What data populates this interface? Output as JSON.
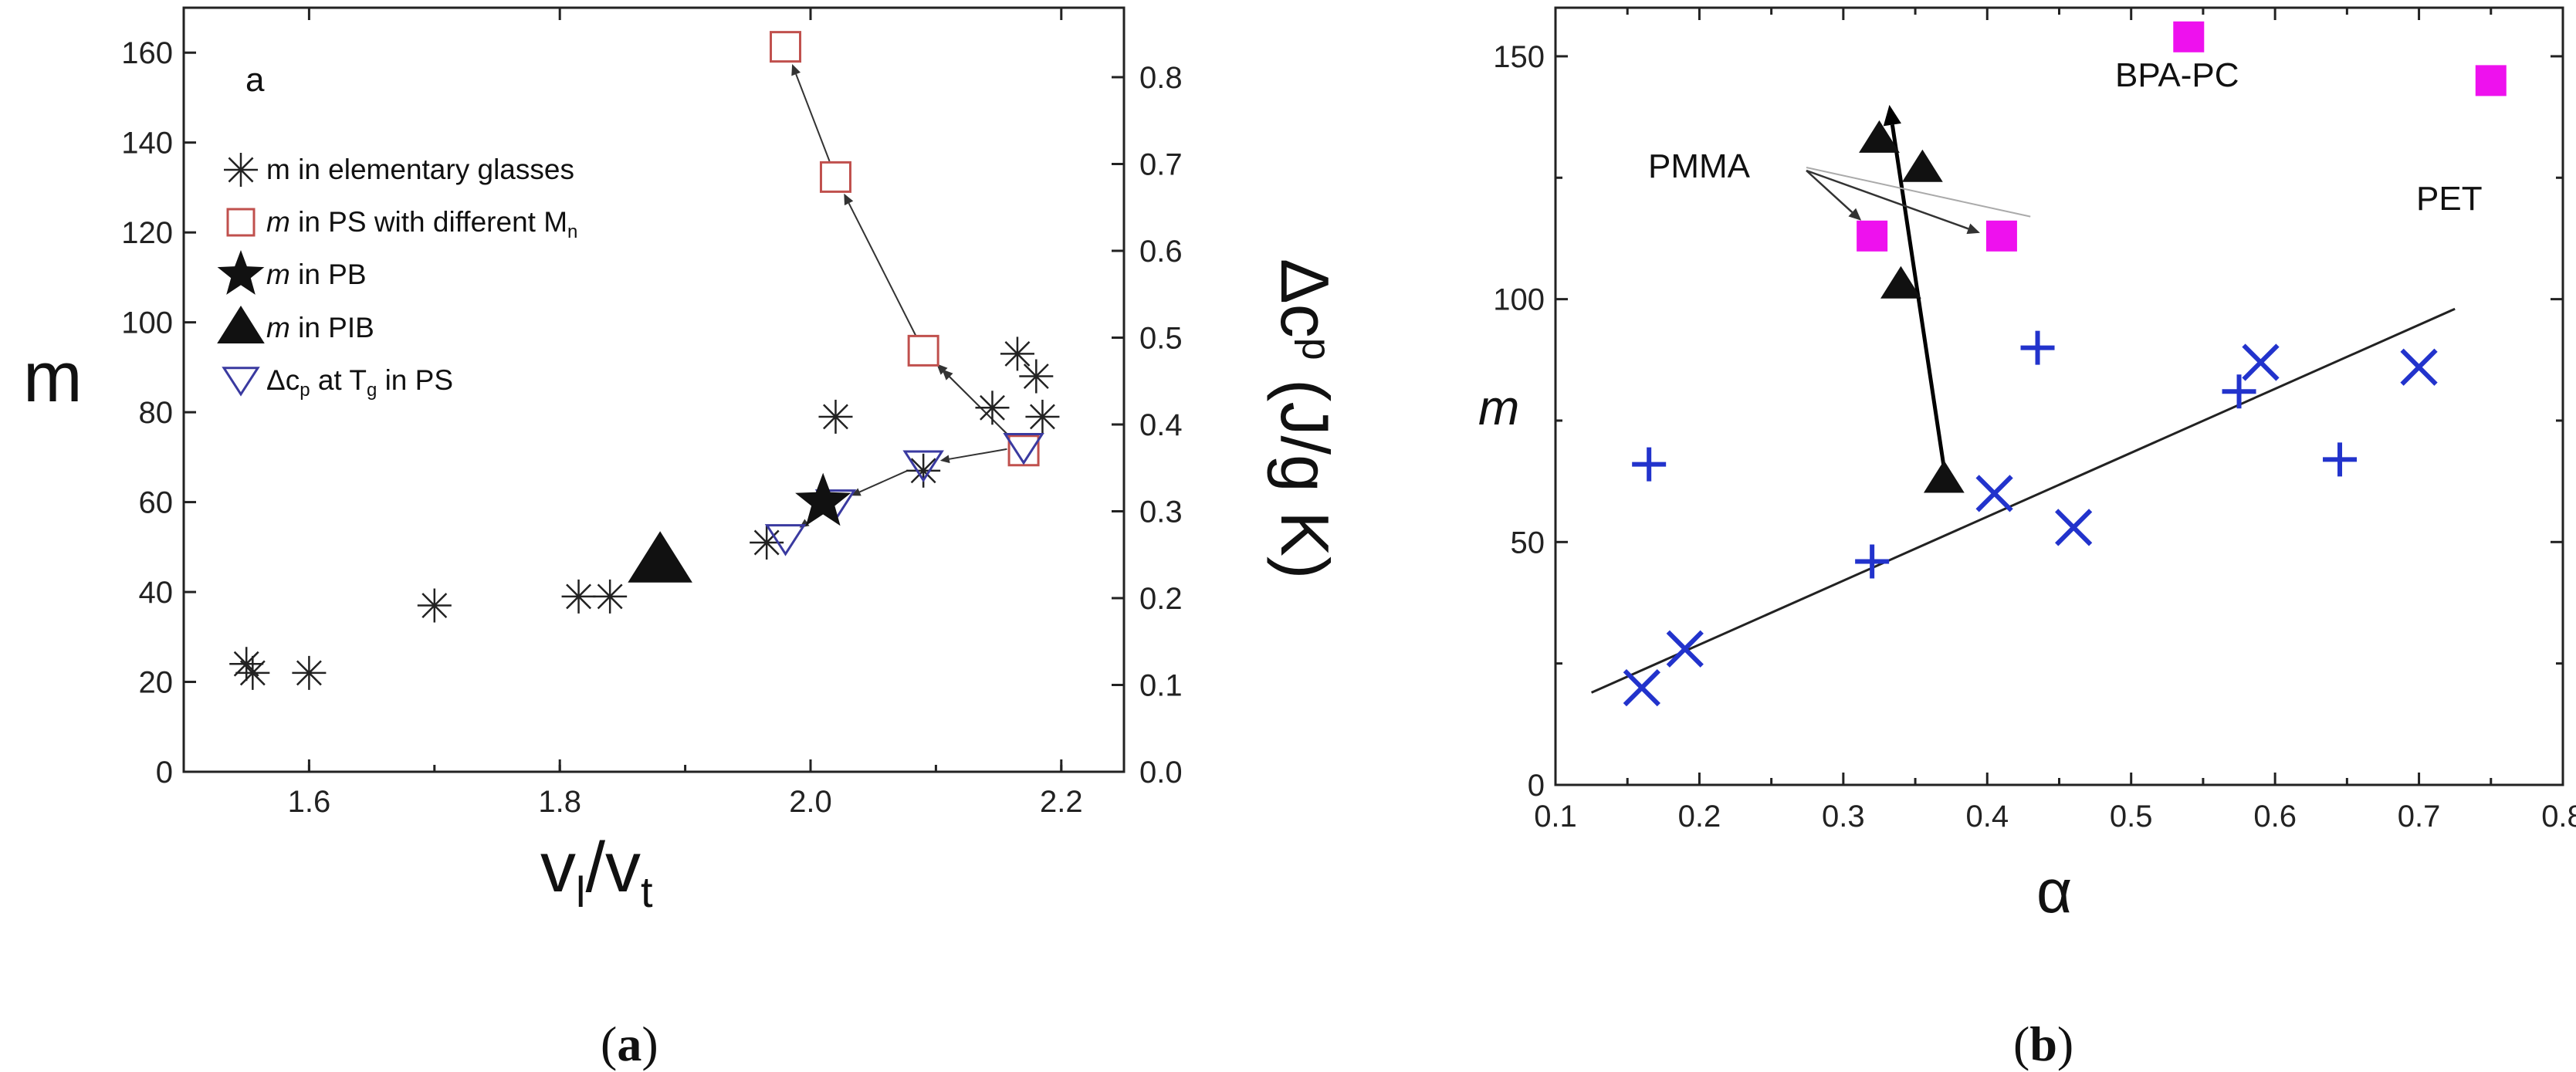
{
  "chart_data": [
    {
      "panel_label": "a",
      "caption": "(a)",
      "type": "scatter",
      "xlabel": "v_l/v_t",
      "ylabel": "m",
      "y2label": "Δc_p (J/g K)",
      "xlim": [
        1.5,
        2.25
      ],
      "ylim": [
        0,
        170
      ],
      "y2lim": [
        0,
        0.88
      ],
      "xticks": [
        1.6,
        1.8,
        2.0,
        2.2
      ],
      "xtick_labels": [
        "1.6",
        "1.8",
        "2.0",
        "2.2"
      ],
      "yticks": [
        0,
        20,
        40,
        60,
        80,
        100,
        120,
        140,
        160
      ],
      "y2ticks": [
        0.0,
        0.1,
        0.2,
        0.3,
        0.4,
        0.5,
        0.6,
        0.7,
        0.8
      ],
      "y2tick_labels": [
        "0.0",
        "0.1",
        "0.2",
        "0.3",
        "0.4",
        "0.5",
        "0.6",
        "0.7",
        "0.8"
      ],
      "legend_position": "top-left",
      "legend": [
        {
          "key": "elementary",
          "text": "m in elementary glasses",
          "marker": "asterisk"
        },
        {
          "key": "ps",
          "italic_prefix": "m",
          "text": " in PS with different M",
          "subscript": "n",
          "marker": "open-square"
        },
        {
          "key": "pb",
          "italic_prefix": "m",
          "text": " in PB",
          "marker": "star"
        },
        {
          "key": "pib",
          "italic_prefix": "m",
          "text": " in PIB",
          "marker": "triangle"
        },
        {
          "key": "dcp",
          "text": "Δc",
          "subscript": "p",
          "text_after": " at T",
          "subscript2": "g",
          "text_end": " in PS",
          "marker": "open-triangle-down"
        }
      ],
      "series": [
        {
          "key": "elementary",
          "axis": "left",
          "color": "#222222",
          "points": [
            [
              1.55,
              24
            ],
            [
              1.555,
              22
            ],
            [
              1.6,
              22
            ],
            [
              1.7,
              37
            ],
            [
              1.815,
              39
            ],
            [
              1.84,
              39
            ],
            [
              1.965,
              51
            ],
            [
              2.02,
              79
            ],
            [
              2.09,
              67
            ],
            [
              2.145,
              81
            ],
            [
              2.165,
              93
            ],
            [
              2.18,
              88
            ],
            [
              2.185,
              79
            ]
          ]
        },
        {
          "key": "ps",
          "axis": "right",
          "color": "#c0504d",
          "points": [
            [
              1.98,
              0.835
            ],
            [
              2.02,
              0.685
            ],
            [
              2.09,
              0.485
            ],
            [
              2.17,
              0.37
            ]
          ]
        },
        {
          "key": "pb",
          "axis": "left",
          "color": "#111111",
          "points": [
            [
              2.01,
              60
            ]
          ]
        },
        {
          "key": "pib",
          "axis": "left",
          "color": "#111111",
          "points": [
            [
              1.88,
              47
            ]
          ]
        },
        {
          "key": "dcp",
          "axis": "right",
          "color": "#3a3aa0",
          "points": [
            [
              1.98,
              0.27
            ],
            [
              2.02,
              0.31
            ],
            [
              2.09,
              0.355
            ],
            [
              2.17,
              0.375
            ]
          ]
        }
      ]
    },
    {
      "caption": "(b)",
      "type": "scatter",
      "xlabel": "α",
      "ylabel": "m",
      "xlim": [
        0.1,
        0.8
      ],
      "ylim": [
        0,
        160
      ],
      "xticks": [
        0.1,
        0.2,
        0.3,
        0.4,
        0.5,
        0.6,
        0.7,
        0.8
      ],
      "xtick_labels": [
        "0.1",
        "0.2",
        "0.3",
        "0.4",
        "0.5",
        "0.6",
        "0.7",
        "0.8"
      ],
      "yticks": [
        0,
        50,
        100,
        150
      ],
      "annotations": [
        "PMMA",
        "BPA-PC",
        "PET"
      ],
      "series": [
        {
          "key": "x-cross",
          "color": "#2233cc",
          "marker": "x",
          "points": [
            [
              0.16,
              20
            ],
            [
              0.19,
              28
            ],
            [
              0.405,
              60
            ],
            [
              0.46,
              53
            ],
            [
              0.59,
              87
            ],
            [
              0.7,
              86
            ]
          ]
        },
        {
          "key": "plus",
          "color": "#2233cc",
          "marker": "plus",
          "points": [
            [
              0.165,
              66
            ],
            [
              0.32,
              46
            ],
            [
              0.435,
              90
            ],
            [
              0.575,
              81
            ],
            [
              0.645,
              67
            ]
          ]
        },
        {
          "key": "square",
          "color": "#ee11ee",
          "marker": "filled-square",
          "points": [
            [
              0.32,
              113
            ],
            [
              0.41,
              113
            ],
            [
              0.54,
              154
            ],
            [
              0.75,
              145
            ]
          ]
        },
        {
          "key": "triangle",
          "color": "#111111",
          "marker": "filled-triangle",
          "points": [
            [
              0.325,
              133
            ],
            [
              0.355,
              127
            ],
            [
              0.34,
              103
            ],
            [
              0.37,
              63
            ]
          ]
        }
      ],
      "fit_line": {
        "x": [
          0.125,
          0.725
        ],
        "y": [
          19,
          98
        ]
      }
    }
  ]
}
